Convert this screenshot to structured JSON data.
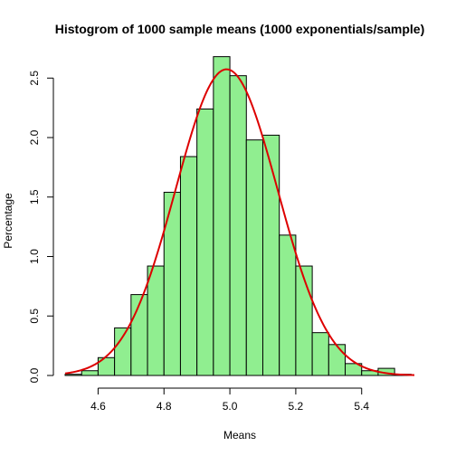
{
  "chart_data": {
    "type": "bar",
    "title": "Histogrom of 1000 sample means (1000 exponentials/sample)",
    "xlabel": "Means",
    "ylabel": "Percentage",
    "xlim": [
      4.5,
      5.56
    ],
    "ylim": [
      0,
      2.7
    ],
    "x_ticks": [
      4.6,
      4.8,
      5.0,
      5.2,
      5.4
    ],
    "x_tick_labels": [
      "4.6",
      "4.8",
      "5.0",
      "5.2",
      "5.4"
    ],
    "y_ticks": [
      0,
      0.5,
      1.0,
      1.5,
      2.0,
      2.5
    ],
    "y_tick_labels": [
      "0.0",
      "0.5",
      "1.0",
      "1.5",
      "2.0",
      "2.5"
    ],
    "bin_width": 0.05,
    "bins_start": [
      4.5,
      4.55,
      4.6,
      4.65,
      4.7,
      4.75,
      4.8,
      4.85,
      4.9,
      4.95,
      5.0,
      5.05,
      5.1,
      5.15,
      5.2,
      5.25,
      5.3,
      5.35,
      5.4,
      5.45,
      5.5
    ],
    "values": [
      0.01,
      0.04,
      0.15,
      0.4,
      0.68,
      0.92,
      1.54,
      1.84,
      2.24,
      2.68,
      2.52,
      1.98,
      2.02,
      1.18,
      0.92,
      0.36,
      0.26,
      0.1,
      0.04,
      0.06,
      0.01
    ],
    "bar_fill": "#90EE90",
    "bar_stroke": "#000000",
    "curve": {
      "type": "normal-density",
      "mean": 4.99,
      "sd": 0.155,
      "color": "#DD0000"
    },
    "grid": false,
    "legend": "none"
  }
}
